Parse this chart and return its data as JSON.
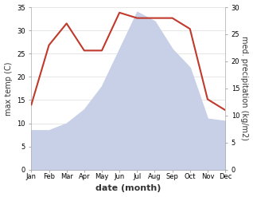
{
  "months": [
    "Jan",
    "Feb",
    "Mar",
    "Apr",
    "May",
    "Jun",
    "Jul",
    "Aug",
    "Sep",
    "Oct",
    "Nov",
    "Dec"
  ],
  "max_temp": [
    8.5,
    8.5,
    10,
    13,
    18,
    26,
    34,
    32,
    26,
    22,
    11,
    10.5
  ],
  "precipitation": [
    12,
    23,
    27,
    22,
    22,
    29,
    28,
    28,
    28,
    26,
    13,
    11
  ],
  "precip_color": "#c0392b",
  "temp_fill_color": "#c8d0e8",
  "left_ylabel": "max temp (C)",
  "right_ylabel": "med. precipitation (kg/m2)",
  "xlabel": "date (month)",
  "ylim_left": [
    0,
    35
  ],
  "ylim_right": [
    0,
    30
  ],
  "yticks_left": [
    0,
    5,
    10,
    15,
    20,
    25,
    30,
    35
  ],
  "yticks_right": [
    0,
    5,
    10,
    15,
    20,
    25,
    30
  ],
  "background_color": "#ffffff",
  "grid_color": "#dddddd",
  "spine_color": "#aaaaaa"
}
